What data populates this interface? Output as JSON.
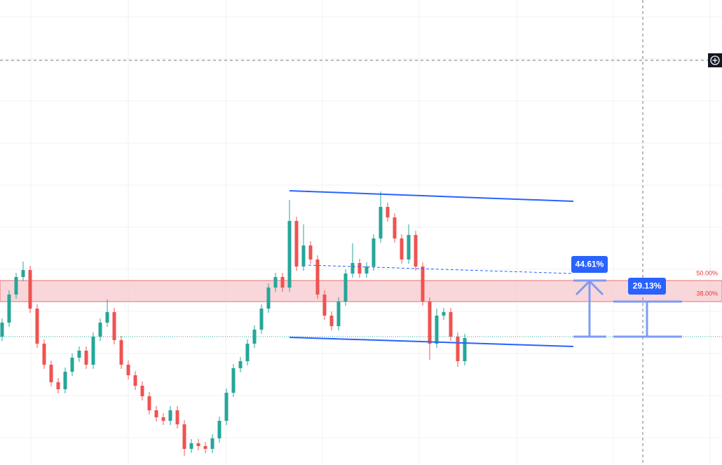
{
  "chart_data": {
    "type": "candlestick",
    "ylim": [
      0,
      663
    ],
    "up_color": "#26a69a",
    "down_color": "#ef5350",
    "open": [
      183,
      203,
      243,
      268,
      278,
      223,
      173,
      143,
      118,
      108,
      133,
      153,
      163,
      143,
      183,
      203,
      218,
      178,
      143,
      128,
      113,
      98,
      78,
      68,
      63,
      78,
      58,
      23,
      31,
      27,
      23,
      38,
      63,
      103,
      138,
      148,
      173,
      193,
      223,
      253,
      268,
      253,
      348,
      283,
      313,
      293,
      243,
      213,
      198,
      233,
      273,
      288,
      273,
      283,
      323,
      368,
      353,
      323,
      293,
      328,
      283,
      233,
      173,
      213,
      218,
      183,
      148
    ],
    "high": [
      209,
      249,
      274,
      290,
      284,
      229,
      179,
      149,
      124,
      139,
      159,
      169,
      169,
      189,
      209,
      236,
      224,
      184,
      149,
      134,
      119,
      104,
      84,
      74,
      84,
      84,
      64,
      37,
      37,
      33,
      44,
      69,
      109,
      144,
      154,
      179,
      199,
      229,
      259,
      274,
      274,
      378,
      354,
      343,
      319,
      299,
      249,
      219,
      239,
      279,
      316,
      294,
      289,
      329,
      390,
      374,
      359,
      329,
      343,
      334,
      289,
      239,
      223,
      224,
      224,
      189,
      187
    ],
    "low": [
      177,
      197,
      237,
      262,
      217,
      167,
      137,
      112,
      102,
      102,
      127,
      147,
      137,
      137,
      177,
      197,
      172,
      137,
      122,
      107,
      92,
      72,
      62,
      57,
      57,
      52,
      13,
      17,
      21,
      17,
      17,
      32,
      57,
      97,
      132,
      142,
      167,
      187,
      217,
      247,
      247,
      247,
      277,
      277,
      287,
      237,
      207,
      192,
      192,
      227,
      267,
      267,
      267,
      277,
      317,
      347,
      317,
      287,
      287,
      277,
      227,
      150,
      167,
      207,
      177,
      140,
      142
    ],
    "close": [
      203,
      243,
      268,
      278,
      223,
      173,
      143,
      118,
      108,
      133,
      153,
      163,
      143,
      183,
      203,
      218,
      178,
      143,
      128,
      113,
      98,
      78,
      68,
      63,
      78,
      58,
      23,
      31,
      27,
      23,
      38,
      63,
      103,
      138,
      148,
      173,
      193,
      223,
      253,
      268,
      253,
      348,
      283,
      313,
      293,
      243,
      213,
      198,
      233,
      273,
      288,
      273,
      283,
      323,
      368,
      353,
      323,
      293,
      328,
      283,
      233,
      173,
      213,
      218,
      183,
      148,
      181
    ],
    "fib_labels": [
      "50.00%",
      "38.00%"
    ],
    "measure_labels": [
      "44.61%",
      "29.13%"
    ]
  }
}
